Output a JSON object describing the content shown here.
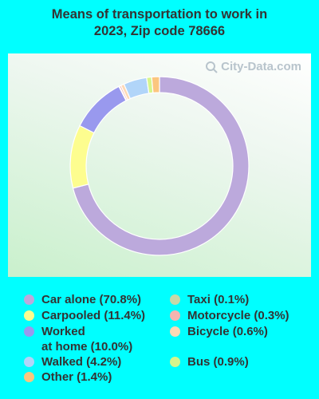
{
  "title_line1": "Means of transportation to work in",
  "title_line2": "2023, Zip code 78666",
  "watermark": "City-Data.com",
  "chart_data": {
    "type": "donut",
    "title": "Means of transportation to work in 2023, Zip code 78666",
    "start_angle_deg": 0,
    "direction": "clockwise",
    "series": [
      {
        "label": "Car alone",
        "value": 70.8,
        "color": "#bca9dc",
        "legend_text": "Car alone (70.8%)"
      },
      {
        "label": "Carpooled",
        "value": 11.4,
        "color": "#fdfd8f",
        "legend_text": "Carpooled (11.4%)"
      },
      {
        "label": "Worked at home",
        "value": 10.0,
        "color": "#9999ee",
        "legend_text": "Worked at home (10.0%)"
      },
      {
        "label": "Taxi",
        "value": 0.1,
        "color": "#c8d8a8",
        "legend_text": "Taxi (0.1%)"
      },
      {
        "label": "Motorcycle",
        "value": 0.3,
        "color": "#f4b4b0",
        "legend_text": "Motorcycle (0.3%)"
      },
      {
        "label": "Bicycle",
        "value": 0.6,
        "color": "#fdd9b5",
        "legend_text": "Bicycle (0.6%)"
      },
      {
        "label": "Walked",
        "value": 4.2,
        "color": "#b1d5f9",
        "legend_text": "Walked (4.2%)"
      },
      {
        "label": "Bus",
        "value": 0.9,
        "color": "#d6f58c",
        "legend_text": "Bus (0.9%)"
      },
      {
        "label": "Other",
        "value": 1.4,
        "color": "#fbc67f",
        "legend_text": "Other (1.4%)"
      }
    ],
    "legend_placement": "bottom"
  }
}
